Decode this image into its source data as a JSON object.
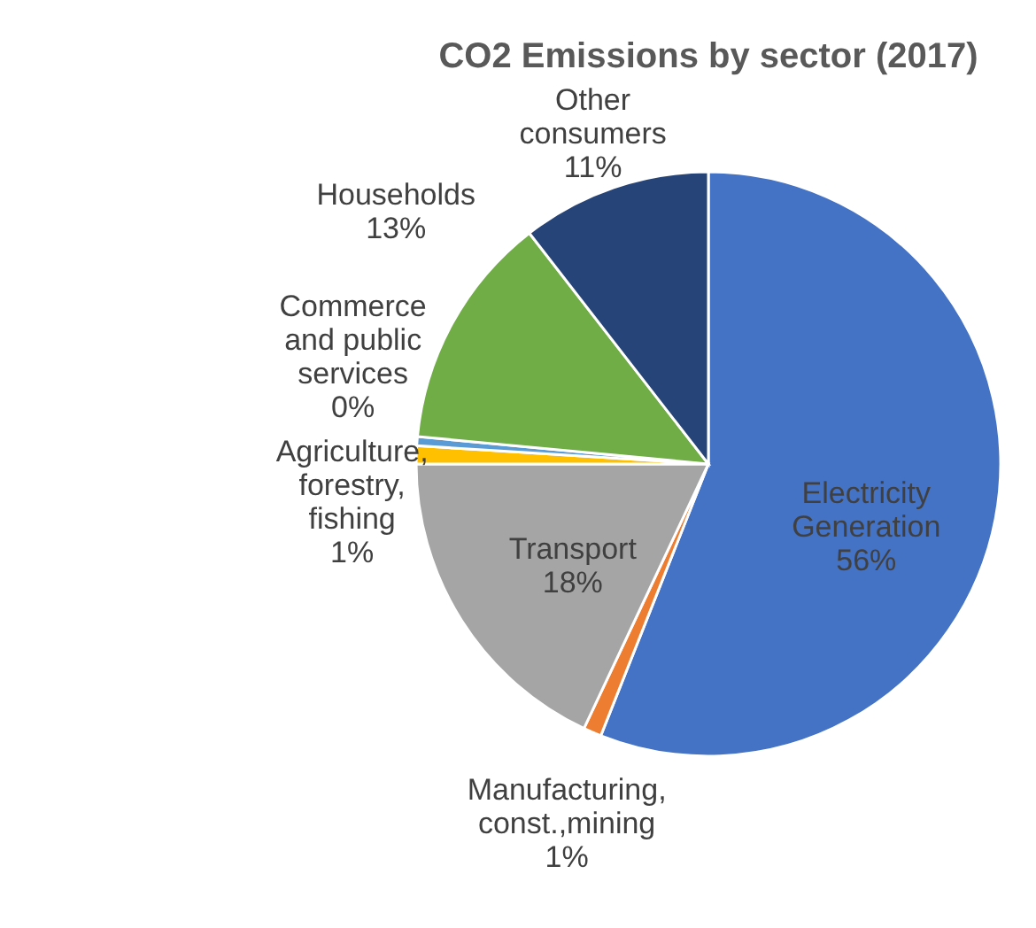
{
  "chart_data": {
    "type": "pie",
    "title": "CO2 Emissions by sector (2017)",
    "categories": [
      "Electricity\nGeneration",
      "Manufacturing,\nconst.,mining",
      "Transport",
      "Agriculture,\nforestry,\nfishing",
      "Commerce\nand public\nservices",
      "Households",
      "Other\nconsumers"
    ],
    "values": [
      56,
      1,
      18,
      1,
      0.5,
      13,
      10.5
    ],
    "value_labels": [
      "56%",
      "1%",
      "18%",
      "1%",
      "0%",
      "13%",
      "11%"
    ],
    "colors": [
      "#4472c4",
      "#ed7d31",
      "#a5a5a5",
      "#ffc000",
      "#5b9bd5",
      "#70ad47",
      "#264478"
    ]
  }
}
